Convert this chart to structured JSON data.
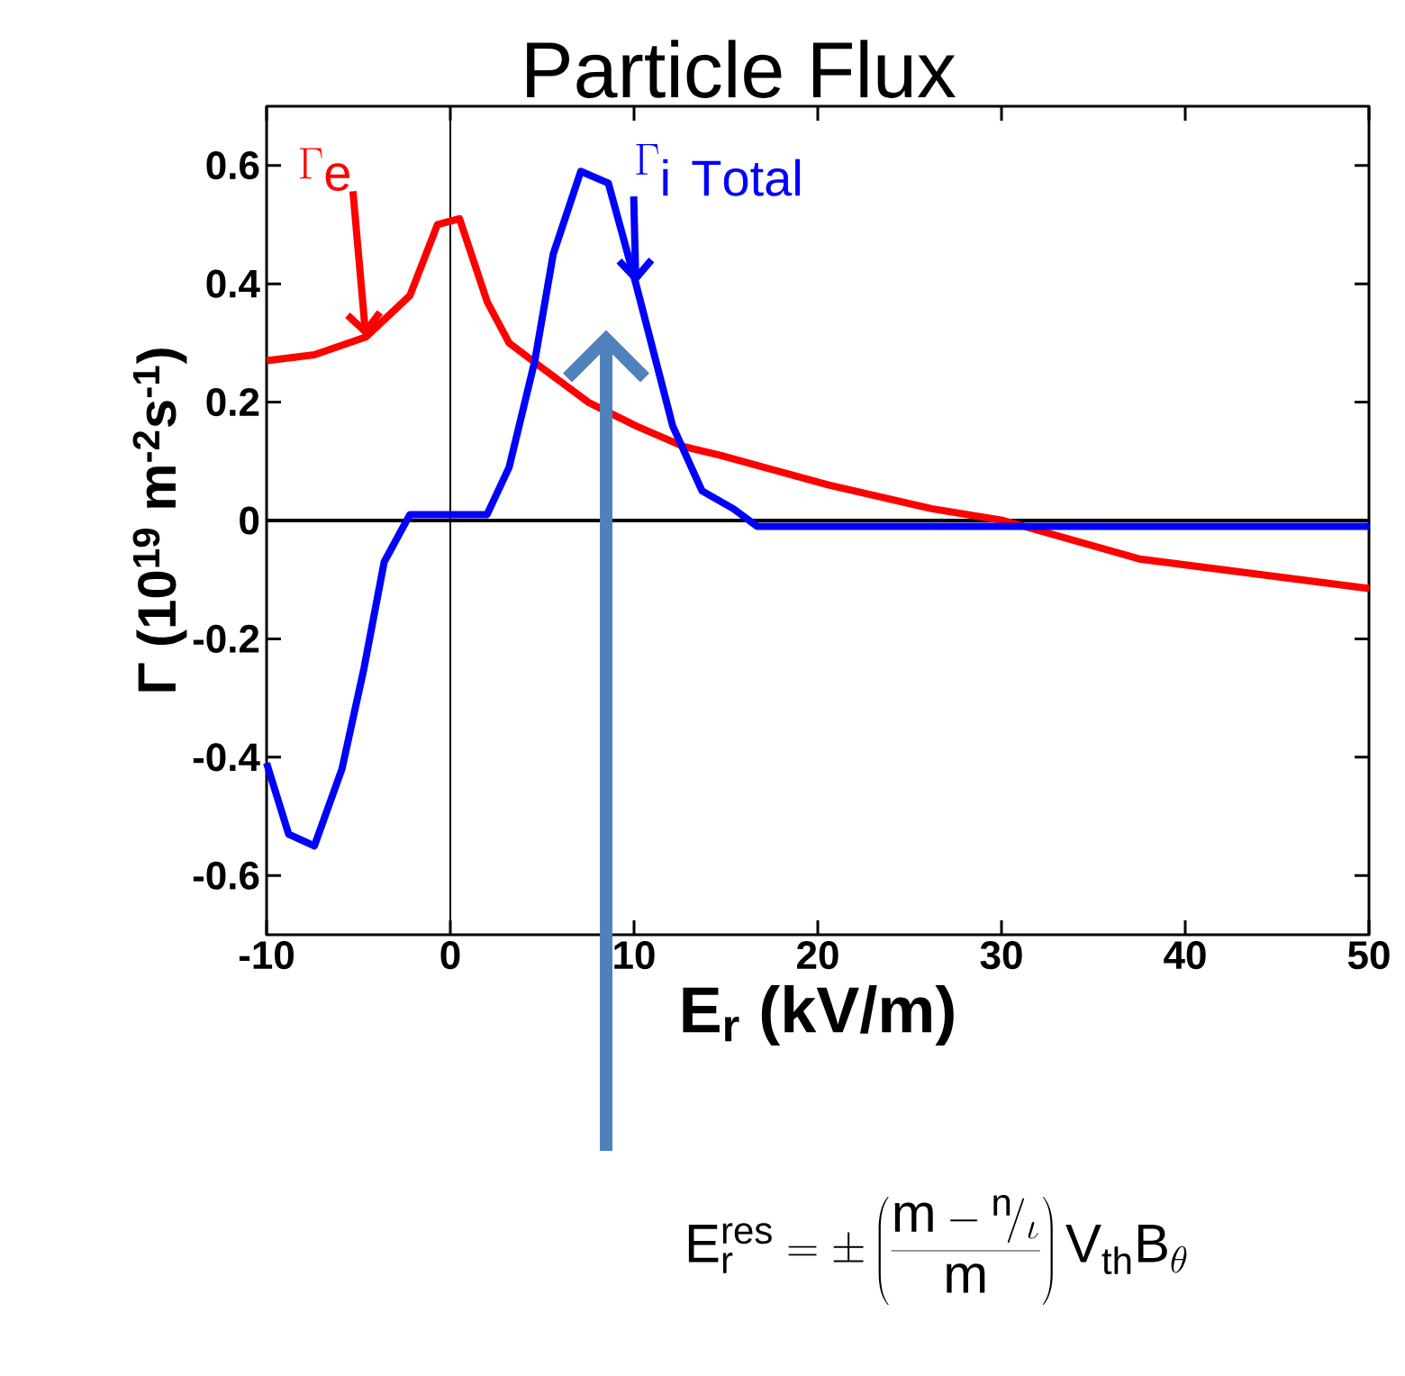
{
  "chart_data": {
    "type": "line",
    "title": "Particle Flux",
    "xlabel": "E$_{r}$ (kV/m)",
    "ylabel": "Γ (10$^{19}$ m$^{-2}$s$^{-1}$)",
    "xlim": [
      -10,
      50
    ],
    "ylim": [
      -0.7,
      0.7
    ],
    "xticks": [
      -10,
      0,
      10,
      20,
      30,
      40,
      50
    ],
    "yticks": [
      -0.6,
      -0.4,
      -0.2,
      0,
      0.2,
      0.4,
      0.6
    ],
    "marker": "none",
    "line_style": "solid",
    "ref_lines": [
      {
        "axis": "x",
        "value": 0,
        "color": "#000000"
      },
      {
        "axis": "y",
        "value": 0,
        "color": "#000000"
      }
    ],
    "annotations": [
      "\\mathrm{E}_{\\mathrm{r}}^{\\mathrm{res}}=\\pm\\left(\\frac{\\mathrm{m}-{}^{\\mathrm{n}}\\!/_{\\iota}}{\\mathrm{m}}\\right)\\mathrm{V}_{\\mathrm{th}}\\mathrm{B}_{\\theta}"
    ],
    "series": [
      {
        "name": "\\Gamma_{\\mathrm{e}}",
        "color": "#ff0000",
        "x": [
          -10,
          -7.4,
          -4.6,
          -2.2,
          -0.7,
          0.5,
          2.0,
          3.2,
          4.9,
          7.5,
          10.1,
          12.7,
          14.7,
          20.6,
          26.2,
          30.1,
          37.5,
          50
        ],
        "values": [
          0.27,
          0.28,
          0.31,
          0.38,
          0.5,
          0.51,
          0.37,
          0.3,
          0.26,
          0.2,
          0.16,
          0.125,
          0.11,
          0.06,
          0.02,
          0.0,
          -0.065,
          -0.115
        ]
      },
      {
        "name": "\\Gamma_{\\mathrm{i\\ Total}}",
        "color": "#0000ff",
        "x": [
          -10,
          -8.8,
          -7.4,
          -5.9,
          -4.7,
          -3.6,
          -2.2,
          0,
          2.0,
          3.2,
          4.6,
          5.6,
          7.1,
          8.6,
          10.1,
          12.1,
          13.7,
          15.4,
          16.7,
          50
        ],
        "values": [
          -0.41,
          -0.53,
          -0.55,
          -0.42,
          -0.25,
          -0.07,
          0.01,
          0.01,
          0.01,
          0.09,
          0.27,
          0.45,
          0.59,
          0.57,
          0.4,
          0.16,
          0.05,
          0.02,
          -0.01,
          -0.01
        ]
      }
    ]
  }
}
